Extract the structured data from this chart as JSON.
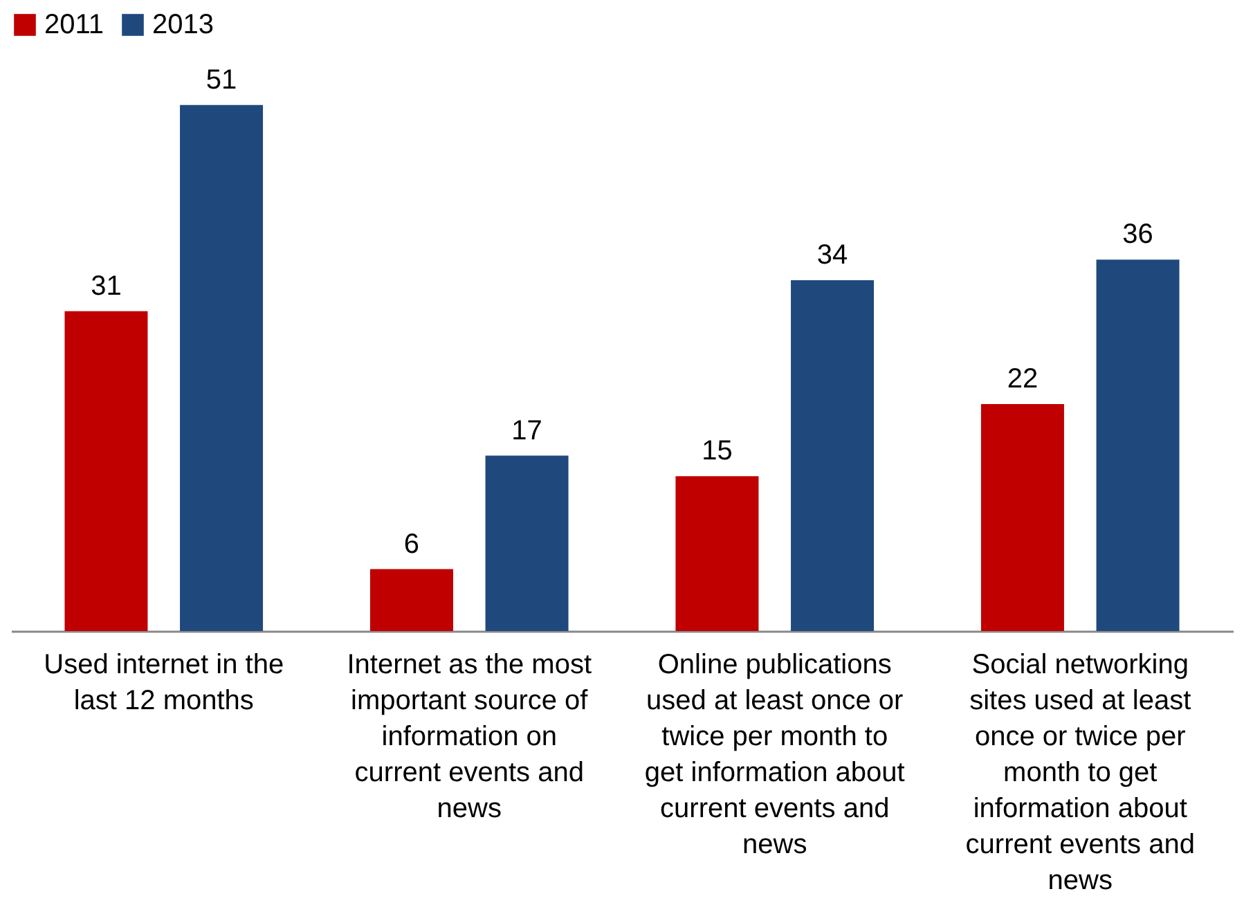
{
  "chart_data": {
    "type": "bar",
    "categories": [
      "Used internet in the last 12 months",
      "Internet as the most important source of information on current events and news",
      "Online publications used at least once or twice per month to get information about current events and news",
      "Social networking sites used at least once or twice per month to get information about current events and news"
    ],
    "series": [
      {
        "name": "2011",
        "color": "#c00000",
        "values": [
          31,
          6,
          15,
          22
        ]
      },
      {
        "name": "2013",
        "color": "#1f497d",
        "values": [
          51,
          17,
          34,
          36
        ]
      }
    ],
    "data_labels": true,
    "legend": "top",
    "grid": false,
    "tick_labels": "x"
  }
}
